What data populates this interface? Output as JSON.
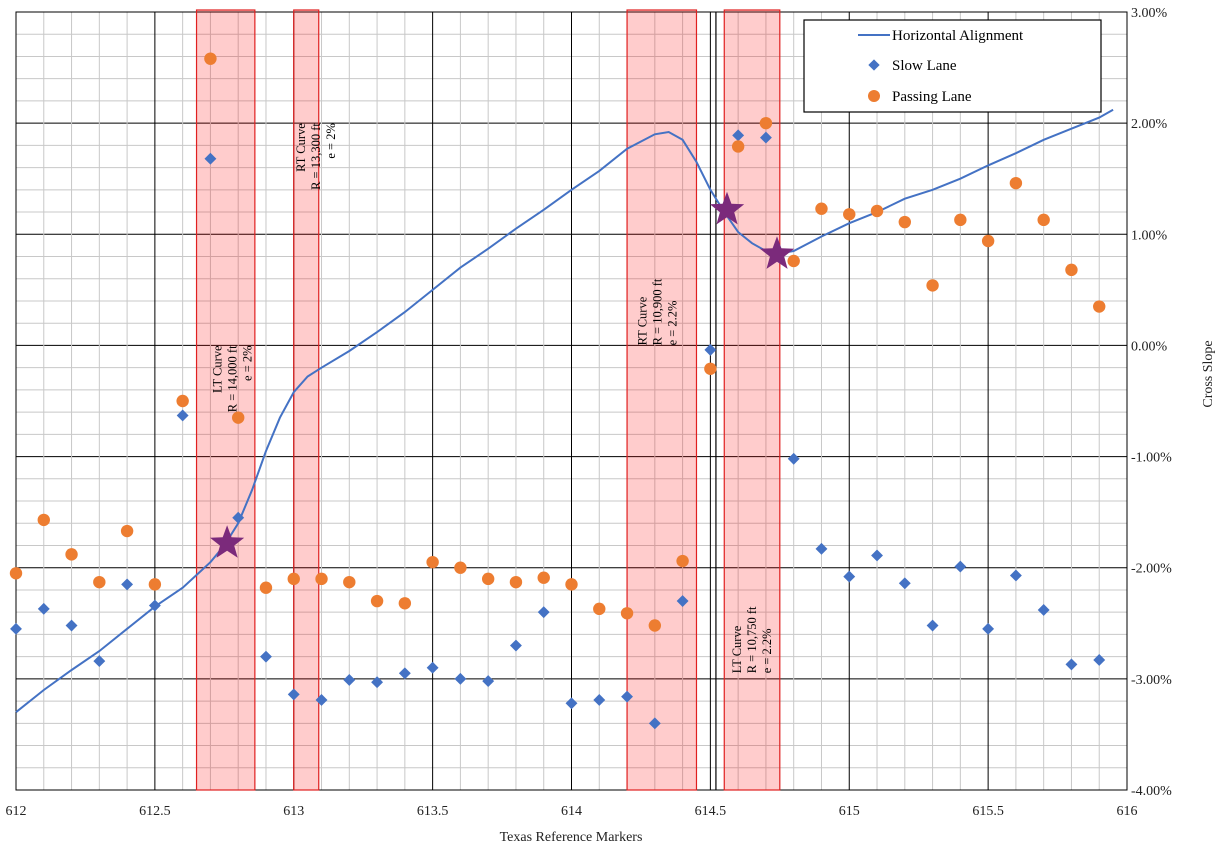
{
  "chart_data": {
    "type": "scatter",
    "xlabel": "Texas Reference Markers",
    "ylabel": "Cross Slope",
    "xlim": [
      612,
      616
    ],
    "ylim": [
      -4,
      3
    ],
    "x_ticks": [
      "612",
      "612.5",
      "613",
      "613.5",
      "614",
      "614.5",
      "615",
      "615.5",
      "616"
    ],
    "y_ticks": [
      "3.00%",
      "2.00%",
      "1.00%",
      "0.00%",
      "-1.00%",
      "-2.00%",
      "-3.00%",
      "-4.00%"
    ],
    "grid": true,
    "legend_position": "top-right",
    "colors": {
      "alignment": "#4472c4",
      "slow": "#4472c4",
      "passing": "#ed7d31",
      "band_fill": "#ff0000",
      "star": "#7b2a7b"
    },
    "series": [
      {
        "name": "Horizontal Alignment",
        "kind": "line",
        "points": [
          [
            612,
            -3.3
          ],
          [
            612.1,
            -3.1
          ],
          [
            612.2,
            -2.92
          ],
          [
            612.3,
            -2.75
          ],
          [
            612.4,
            -2.55
          ],
          [
            612.5,
            -2.35
          ],
          [
            612.6,
            -2.18
          ],
          [
            612.7,
            -1.95
          ],
          [
            612.75,
            -1.8
          ],
          [
            612.8,
            -1.6
          ],
          [
            612.85,
            -1.3
          ],
          [
            612.9,
            -0.95
          ],
          [
            612.95,
            -0.65
          ],
          [
            613.0,
            -0.42
          ],
          [
            613.05,
            -0.28
          ],
          [
            613.1,
            -0.2
          ],
          [
            613.2,
            -0.05
          ],
          [
            613.3,
            0.12
          ],
          [
            613.4,
            0.3
          ],
          [
            613.5,
            0.5
          ],
          [
            613.6,
            0.7
          ],
          [
            613.7,
            0.87
          ],
          [
            613.8,
            1.05
          ],
          [
            613.9,
            1.22
          ],
          [
            614.0,
            1.4
          ],
          [
            614.1,
            1.57
          ],
          [
            614.2,
            1.77
          ],
          [
            614.3,
            1.9
          ],
          [
            614.35,
            1.92
          ],
          [
            614.4,
            1.85
          ],
          [
            614.45,
            1.65
          ],
          [
            614.5,
            1.4
          ],
          [
            614.55,
            1.2
          ],
          [
            614.6,
            1.02
          ],
          [
            614.65,
            0.92
          ],
          [
            614.7,
            0.85
          ],
          [
            614.75,
            0.83
          ],
          [
            614.8,
            0.85
          ],
          [
            614.9,
            0.98
          ],
          [
            615.0,
            1.1
          ],
          [
            615.1,
            1.2
          ],
          [
            615.2,
            1.32
          ],
          [
            615.3,
            1.4
          ],
          [
            615.4,
            1.5
          ],
          [
            615.5,
            1.62
          ],
          [
            615.6,
            1.73
          ],
          [
            615.7,
            1.85
          ],
          [
            615.8,
            1.95
          ],
          [
            615.9,
            2.05
          ],
          [
            615.95,
            2.12
          ]
        ]
      },
      {
        "name": "Slow Lane",
        "kind": "diamond",
        "points": [
          [
            612.0,
            -2.55
          ],
          [
            612.1,
            -2.37
          ],
          [
            612.2,
            -2.52
          ],
          [
            612.3,
            -2.84
          ],
          [
            612.4,
            -2.15
          ],
          [
            612.5,
            -2.34
          ],
          [
            612.6,
            -0.63
          ],
          [
            612.7,
            1.68
          ],
          [
            612.8,
            -1.55
          ],
          [
            612.9,
            -2.8
          ],
          [
            613.0,
            -3.14
          ],
          [
            613.1,
            -3.19
          ],
          [
            613.2,
            -3.01
          ],
          [
            613.3,
            -3.03
          ],
          [
            613.4,
            -2.95
          ],
          [
            613.5,
            -2.9
          ],
          [
            613.6,
            -3.0
          ],
          [
            613.7,
            -3.02
          ],
          [
            613.8,
            -2.7
          ],
          [
            613.9,
            -2.4
          ],
          [
            614.0,
            -3.22
          ],
          [
            614.1,
            -3.19
          ],
          [
            614.2,
            -3.16
          ],
          [
            614.3,
            -3.4
          ],
          [
            614.4,
            -2.3
          ],
          [
            614.5,
            -0.04
          ],
          [
            614.6,
            1.89
          ],
          [
            614.7,
            1.87
          ],
          [
            614.8,
            -1.02
          ],
          [
            614.9,
            -1.83
          ],
          [
            615.0,
            -2.08
          ],
          [
            615.1,
            -1.89
          ],
          [
            615.2,
            -2.14
          ],
          [
            615.3,
            -2.52
          ],
          [
            615.4,
            -1.99
          ],
          [
            615.5,
            -2.55
          ],
          [
            615.6,
            -2.07
          ],
          [
            615.7,
            -2.38
          ],
          [
            615.8,
            -2.87
          ],
          [
            615.9,
            -2.83
          ]
        ]
      },
      {
        "name": "Passing Lane",
        "kind": "circle",
        "points": [
          [
            612.0,
            -2.05
          ],
          [
            612.1,
            -1.57
          ],
          [
            612.2,
            -1.88
          ],
          [
            612.3,
            -2.13
          ],
          [
            612.4,
            -1.67
          ],
          [
            612.5,
            -2.15
          ],
          [
            612.6,
            -0.5
          ],
          [
            612.7,
            2.58
          ],
          [
            612.8,
            -0.65
          ],
          [
            612.9,
            -2.18
          ],
          [
            613.0,
            -2.1
          ],
          [
            613.1,
            -2.1
          ],
          [
            613.2,
            -2.13
          ],
          [
            613.3,
            -2.3
          ],
          [
            613.4,
            -2.32
          ],
          [
            613.5,
            -1.95
          ],
          [
            613.6,
            -2.0
          ],
          [
            613.7,
            -2.1
          ],
          [
            613.8,
            -2.13
          ],
          [
            613.9,
            -2.09
          ],
          [
            614.0,
            -2.15
          ],
          [
            614.1,
            -2.37
          ],
          [
            614.2,
            -2.41
          ],
          [
            614.3,
            -2.52
          ],
          [
            614.4,
            -1.94
          ],
          [
            614.5,
            -0.21
          ],
          [
            614.6,
            1.79
          ],
          [
            614.7,
            2.0
          ],
          [
            614.8,
            0.76
          ],
          [
            614.9,
            1.23
          ],
          [
            615.0,
            1.18
          ],
          [
            615.1,
            1.21
          ],
          [
            615.2,
            1.11
          ],
          [
            615.3,
            0.54
          ],
          [
            615.4,
            1.13
          ],
          [
            615.5,
            0.94
          ],
          [
            615.6,
            1.46
          ],
          [
            615.7,
            1.13
          ],
          [
            615.8,
            0.68
          ],
          [
            615.9,
            0.35
          ]
        ]
      }
    ],
    "stars": [
      [
        612.76,
        -1.78
      ],
      [
        614.56,
        1.22
      ],
      [
        614.74,
        0.82
      ]
    ],
    "curve_bands": [
      {
        "x_start": 612.65,
        "x_end": 612.86,
        "lines": [
          "LT Curve",
          "R = 14,000 ft",
          "e = 2%"
        ],
        "label_x": 612.74,
        "label_y": 0.0,
        "label_align": "end"
      },
      {
        "x_start": 613.0,
        "x_end": 613.09,
        "lines": [
          "RT Curve",
          "R = 13,300 ft",
          "e = 2%"
        ],
        "label_x": 613.04,
        "label_y": 2.0,
        "label_align": "end"
      },
      {
        "x_start": 614.2,
        "x_end": 614.45,
        "lines": [
          "RT Curve",
          "R = 10,900 ft",
          "e = 2.2%"
        ],
        "label_x": 614.27,
        "label_y": 0.0,
        "label_align": "start"
      },
      {
        "x_start": 614.55,
        "x_end": 614.75,
        "lines": [
          "LT Curve",
          "R = 10,750 ft",
          "e = 2.2%"
        ],
        "label_x": 614.61,
        "label_y": -2.95,
        "label_align": "start"
      }
    ]
  }
}
